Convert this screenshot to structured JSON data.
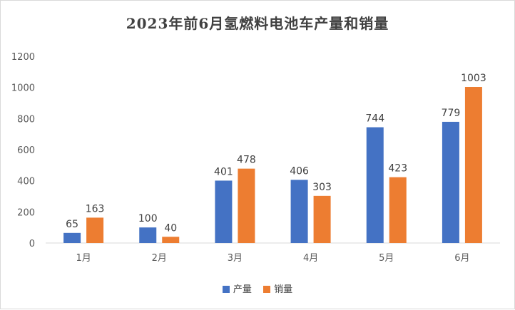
{
  "chart_data": {
    "type": "bar",
    "title": "2023年前6月氢燃料电池车产量和销量",
    "categories": [
      "1月",
      "2月",
      "3月",
      "4月",
      "5月",
      "6月"
    ],
    "series": [
      {
        "name": "产量",
        "values": [
          65,
          100,
          401,
          406,
          744,
          779
        ],
        "color": "#4472c4"
      },
      {
        "name": "销量",
        "values": [
          163,
          40,
          478,
          303,
          423,
          1003
        ],
        "color": "#ed7d31"
      }
    ],
    "ylim": [
      0,
      1200
    ],
    "yticks": [
      0,
      200,
      400,
      600,
      800,
      1000,
      1200
    ],
    "grid": false,
    "legend_position": "bottom",
    "data_labels": true
  }
}
